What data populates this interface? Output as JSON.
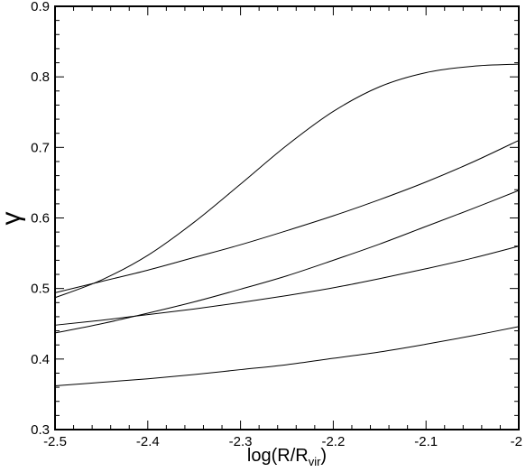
{
  "chart_data": {
    "type": "line",
    "title": "",
    "xlabel": {
      "main": "log(R/R",
      "sub": "vir",
      "close": ")"
    },
    "ylabel": "γ",
    "xlim": [
      -2.5,
      -2.0
    ],
    "ylim": [
      0.3,
      0.9
    ],
    "x_ticks": [
      "-2.5",
      "-2.4",
      "-2.3",
      "-2.2",
      "-2.1",
      "-2"
    ],
    "y_ticks": [
      "0.3",
      "0.4",
      "0.5",
      "0.6",
      "0.7",
      "0.8",
      "0.9"
    ],
    "x_tick_values": [
      -2.5,
      -2.4,
      -2.3,
      -2.2,
      -2.1,
      -2.0
    ],
    "y_tick_values": [
      0.3,
      0.4,
      0.5,
      0.6,
      0.7,
      0.8,
      0.9
    ],
    "grid": false,
    "series": [
      {
        "x": [
          -2.5,
          -2.45,
          -2.4,
          -2.35,
          -2.3,
          -2.25,
          -2.2,
          -2.15,
          -2.1,
          -2.05,
          -2.0
        ],
        "y": [
          0.487,
          0.512,
          0.547,
          0.594,
          0.648,
          0.703,
          0.751,
          0.786,
          0.806,
          0.815,
          0.818
        ]
      },
      {
        "x": [
          -2.5,
          -2.45,
          -2.4,
          -2.35,
          -2.3,
          -2.25,
          -2.2,
          -2.15,
          -2.1,
          -2.05,
          -2.0
        ],
        "y": [
          0.494,
          0.51,
          0.526,
          0.544,
          0.562,
          0.582,
          0.603,
          0.626,
          0.651,
          0.679,
          0.71
        ]
      },
      {
        "x": [
          -2.5,
          -2.45,
          -2.4,
          -2.35,
          -2.3,
          -2.25,
          -2.2,
          -2.15,
          -2.1,
          -2.05,
          -2.0
        ],
        "y": [
          0.437,
          0.45,
          0.465,
          0.481,
          0.499,
          0.518,
          0.54,
          0.563,
          0.588,
          0.613,
          0.639
        ]
      },
      {
        "x": [
          -2.5,
          -2.45,
          -2.4,
          -2.35,
          -2.3,
          -2.25,
          -2.2,
          -2.15,
          -2.1,
          -2.05,
          -2.0
        ],
        "y": [
          0.448,
          0.455,
          0.463,
          0.471,
          0.48,
          0.49,
          0.501,
          0.514,
          0.528,
          0.543,
          0.56
        ]
      },
      {
        "x": [
          -2.5,
          -2.45,
          -2.4,
          -2.35,
          -2.3,
          -2.25,
          -2.2,
          -2.15,
          -2.1,
          -2.05,
          -2.0
        ],
        "y": [
          0.362,
          0.367,
          0.372,
          0.378,
          0.385,
          0.392,
          0.401,
          0.41,
          0.421,
          0.433,
          0.446
        ]
      }
    ]
  }
}
